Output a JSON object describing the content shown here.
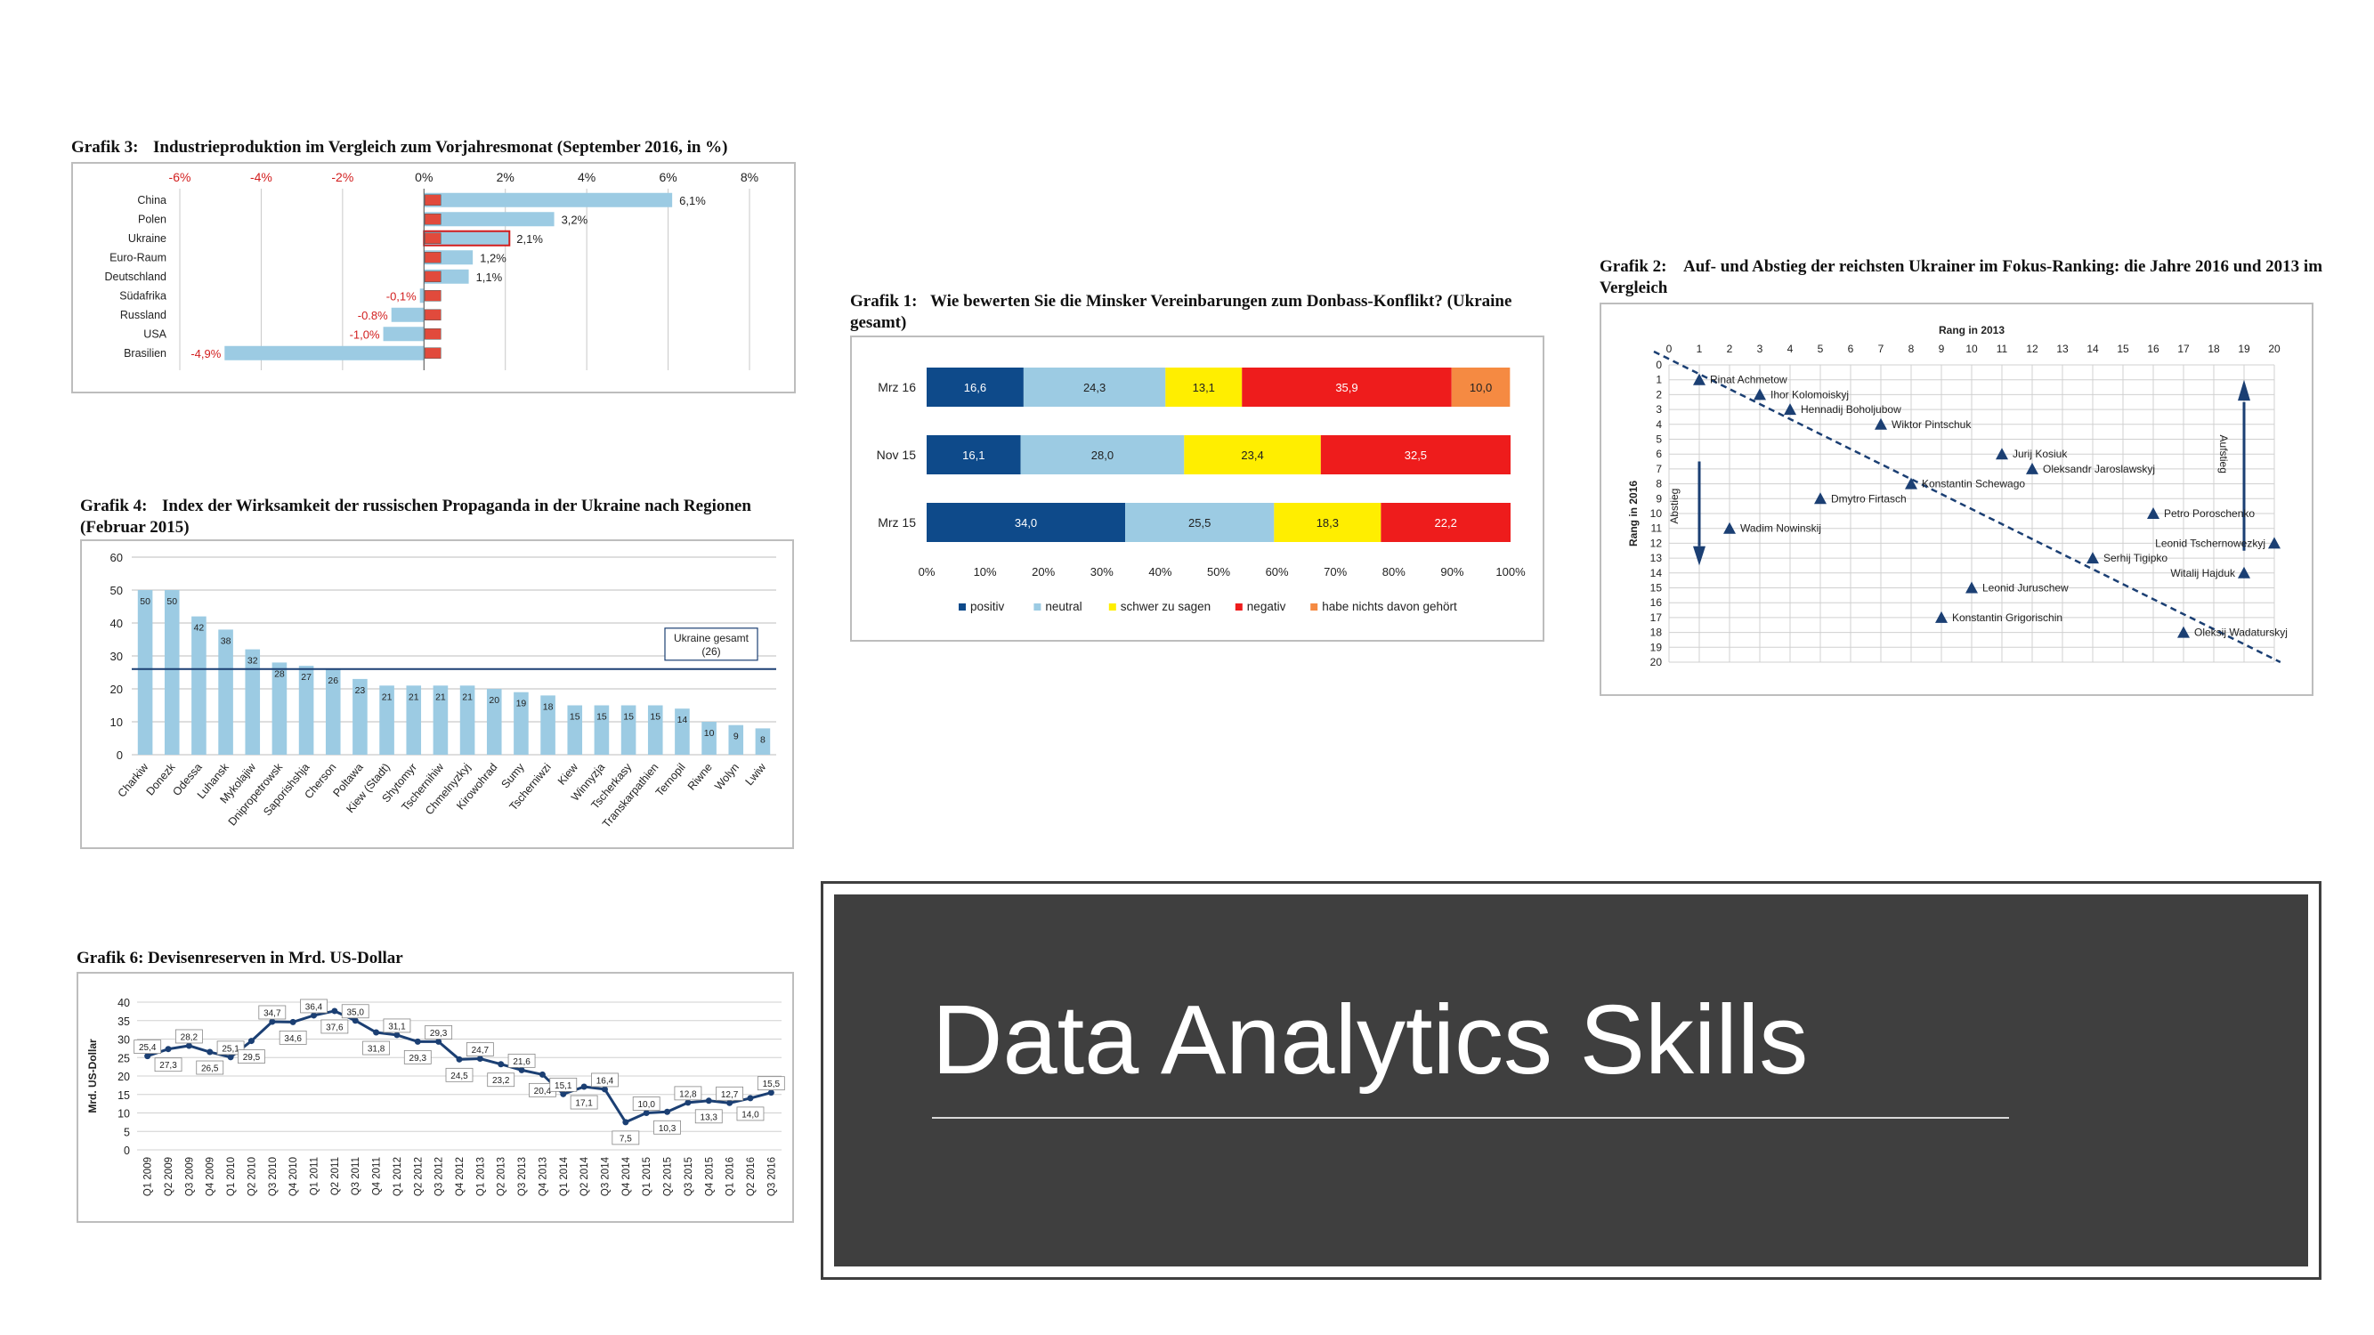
{
  "slide": {
    "title": "Data Analytics Skills"
  },
  "charts": [
    {
      "id": "g3",
      "number": "Grafik 3:",
      "title": "Industrieproduktion im Vergleich zum Vorjahresmonat (September 2016, in %)",
      "type": "bar",
      "ticks": [
        "-6%",
        "-4%",
        "-2%",
        "0%",
        "2%",
        "4%",
        "6%",
        "8%"
      ],
      "xlim": [
        -6,
        8
      ],
      "categories": [
        "China",
        "Polen",
        "Ukraine",
        "Euro-Raum",
        "Deutschland",
        "Südafrika",
        "Russland",
        "USA",
        "Brasilien"
      ],
      "values": [
        6.1,
        3.2,
        2.1,
        1.2,
        1.1,
        -0.1,
        -0.8,
        -1.0,
        -4.9
      ],
      "labels": [
        "6,1%",
        "3,2%",
        "2,1%",
        "1,2%",
        "1,1%",
        "-0,1%",
        "-0.8%",
        "-1,0%",
        "-4,9%"
      ],
      "colors": {
        "bar": "#9ccbe3",
        "negative_text": "#d21e1e",
        "highlight": "#d21e1e"
      }
    },
    {
      "id": "g1",
      "number": "Grafik 1:",
      "title": "Wie bewerten Sie die Minsker Vereinbarungen zum Donbass-Konflikt? (Ukraine gesamt)",
      "type": "bar",
      "categories": [
        "Mrz 16",
        "Nov 15",
        "Mrz 15"
      ],
      "ticks": [
        "0%",
        "10%",
        "20%",
        "30%",
        "40%",
        "50%",
        "60%",
        "70%",
        "80%",
        "90%",
        "100%"
      ],
      "series": [
        {
          "name": "positiv",
          "color": "#0e4a8a",
          "values": [
            16.6,
            16.1,
            34.0
          ],
          "labels": [
            "16,6",
            "16,1",
            "34,0"
          ]
        },
        {
          "name": "neutral",
          "color": "#9ccbe3",
          "values": [
            24.3,
            28.0,
            25.5
          ],
          "labels": [
            "24,3",
            "28,0",
            "25,5"
          ]
        },
        {
          "name": "schwer zu sagen",
          "color": "#ffee00",
          "values": [
            13.1,
            23.4,
            18.3
          ],
          "labels": [
            "13,1",
            "23,4",
            "18,3"
          ]
        },
        {
          "name": "negativ",
          "color": "#ee1c1c",
          "values": [
            35.9,
            32.5,
            22.2
          ],
          "labels": [
            "35,9",
            "32,5",
            "22,2"
          ]
        },
        {
          "name": "habe nichts davon gehört",
          "color": "#f58a42",
          "values": [
            10.0,
            0,
            0
          ],
          "labels": [
            "10,0",
            "",
            ""
          ]
        }
      ]
    },
    {
      "id": "g2",
      "number": "Grafik 2:",
      "title": "Auf- und Abstieg der reichsten Ukrainer im Fokus-Ranking: die Jahre 2016 und 2013 im Vergleich",
      "type": "scatter",
      "xlabel": "Rang in 2013",
      "ylabel": "Rang in 2016",
      "xlim": [
        0,
        20
      ],
      "ylim": [
        0,
        20
      ],
      "x_ticks": [
        "0",
        "1",
        "2",
        "3",
        "4",
        "5",
        "6",
        "7",
        "8",
        "9",
        "10",
        "11",
        "12",
        "13",
        "14",
        "15",
        "16",
        "17",
        "18",
        "19",
        "20"
      ],
      "y_ticks": [
        "0",
        "1",
        "2",
        "3",
        "4",
        "5",
        "6",
        "7",
        "8",
        "9",
        "10",
        "11",
        "12",
        "13",
        "14",
        "15",
        "16",
        "17",
        "18",
        "19",
        "20"
      ],
      "annotations": {
        "up": "Aufstieg",
        "down": "Abstieg"
      },
      "points": [
        {
          "name": "Rinat Achmetow",
          "x": 1,
          "y": 1
        },
        {
          "name": "Ihor Kolomoiskyj",
          "x": 3,
          "y": 2
        },
        {
          "name": "Hennadij Boholjubow",
          "x": 4,
          "y": 3
        },
        {
          "name": "Wiktor Pintschuk",
          "x": 7,
          "y": 4
        },
        {
          "name": "Jurij Kosiuk",
          "x": 11,
          "y": 6
        },
        {
          "name": "Oleksandr Jaroslawskyj",
          "x": 12,
          "y": 7
        },
        {
          "name": "Konstantin Schewago",
          "x": 8,
          "y": 8
        },
        {
          "name": "Dmytro Firtasch",
          "x": 5,
          "y": 9
        },
        {
          "name": "Petro Poroschenko",
          "x": 16,
          "y": 10
        },
        {
          "name": "Wadim Nowinskij",
          "x": 2,
          "y": 11
        },
        {
          "name": "Leonid Tschernowezkyj",
          "x": 20,
          "y": 12
        },
        {
          "name": "Serhij Tigipko",
          "x": 14,
          "y": 13
        },
        {
          "name": "Witalij Hajduk",
          "x": 19,
          "y": 14
        },
        {
          "name": "Leonid Juruschew",
          "x": 10,
          "y": 15
        },
        {
          "name": "Konstantin Grigorischin",
          "x": 9,
          "y": 17
        },
        {
          "name": "Oleksij Wadaturskyj",
          "x": 17,
          "y": 18
        }
      ],
      "colors": {
        "marker": "#1b3f73",
        "grid": "#d0d0d0"
      }
    },
    {
      "id": "g4",
      "number": "Grafik 4:",
      "title": "Index der Wirksamkeit der russischen Propaganda in der Ukraine nach Regionen (Februar 2015)",
      "type": "bar",
      "ylim": [
        0,
        60
      ],
      "y_ticks": [
        "0",
        "10",
        "20",
        "30",
        "40",
        "50",
        "60"
      ],
      "categories": [
        "Charkiw",
        "Donezk",
        "Odessa",
        "Luhansk",
        "Mykolajiw",
        "Dnipropetrowsk",
        "Saporishshja",
        "Cherson",
        "Poltawa",
        "Kiew (Stadt)",
        "Shytomyr",
        "Tschernihiw",
        "Chmelnyzkyj",
        "Kirowohrad",
        "Sumy",
        "Tscherniwzi",
        "Kiew",
        "Winnyzja",
        "Tscherkasy",
        "Transkarpathien",
        "Ternopil",
        "Riwne",
        "Wolyn",
        "Lwiw"
      ],
      "values": [
        50,
        50,
        42,
        38,
        32,
        28,
        27,
        26,
        23,
        21,
        21,
        21,
        21,
        20,
        19,
        18,
        15,
        15,
        15,
        15,
        14,
        10,
        9,
        8
      ],
      "labels": [
        "50",
        "50",
        "42",
        "38",
        "32",
        "28",
        "27",
        "26",
        "23",
        "21",
        "21",
        "21",
        "21",
        "20",
        "19",
        "18",
        "15",
        "15",
        "15",
        "15",
        "14",
        "10",
        "9",
        "8"
      ],
      "reference": {
        "value": 26,
        "label1": "Ukraine gesamt",
        "label2": "(26)"
      },
      "colors": {
        "bar": "#9ccbe3",
        "line": "#1b3f73"
      }
    },
    {
      "id": "g6",
      "number": "Grafik 6:",
      "title": "Devisenreserven in Mrd. US-Dollar",
      "type": "line",
      "ylabel": "Mrd. US-Dollar",
      "ylim": [
        0,
        40
      ],
      "y_ticks": [
        "0",
        "5",
        "10",
        "15",
        "20",
        "25",
        "30",
        "35",
        "40"
      ],
      "categories": [
        "Q1 2009",
        "Q2 2009",
        "Q3 2009",
        "Q4 2009",
        "Q1 2010",
        "Q2 2010",
        "Q3 2010",
        "Q4 2010",
        "Q1 2011",
        "Q2 2011",
        "Q3 2011",
        "Q4 2011",
        "Q1 2012",
        "Q2 2012",
        "Q3 2012",
        "Q4 2012",
        "Q1 2013",
        "Q2 2013",
        "Q3 2013",
        "Q4 2013",
        "Q1 2014",
        "Q2 2014",
        "Q3 2014",
        "Q4 2014",
        "Q1 2015",
        "Q2 2015",
        "Q3 2015",
        "Q4 2015",
        "Q1 2016",
        "Q2 2016",
        "Q3 2016"
      ],
      "values": [
        25.4,
        27.3,
        28.2,
        26.5,
        25.1,
        29.5,
        34.7,
        34.6,
        36.4,
        37.6,
        35.0,
        31.8,
        31.1,
        29.3,
        29.3,
        24.5,
        24.7,
        23.2,
        21.6,
        20.4,
        15.1,
        17.1,
        16.4,
        7.5,
        10.0,
        10.3,
        12.8,
        13.3,
        12.7,
        14.0,
        15.5
      ],
      "labels": [
        "25,4",
        "27,3",
        "28,2",
        "26,5",
        "25,1",
        "29,5",
        "34,7",
        "34,6",
        "36,4",
        "37,6",
        "35,0",
        "31,8",
        "31,1",
        "29,3",
        "29,3",
        "24,5",
        "24,7",
        "23,2",
        "21,6",
        "20,4",
        "15,1",
        "17,1",
        "16,4",
        "7,5",
        "10,0",
        "10,3",
        "12,8",
        "13,3",
        "12,7",
        "14,0",
        "15,5"
      ],
      "colors": {
        "line": "#1b3f73"
      }
    }
  ]
}
